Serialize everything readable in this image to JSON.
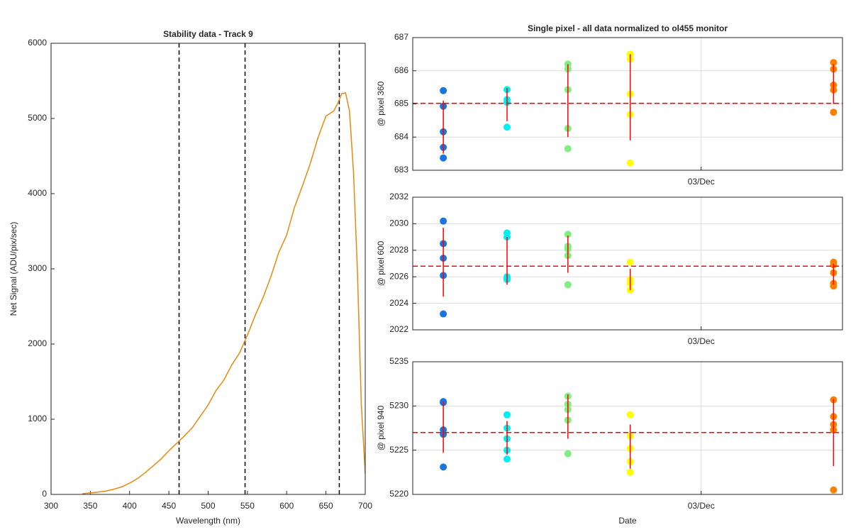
{
  "chart_data": [
    {
      "type": "line",
      "title": "Stability data - Track 9",
      "xlabel": "Wavelength (nm)",
      "ylabel": "Net Signal (ADU/pix/sec)",
      "color": "#e8890c",
      "x": [
        340,
        350,
        360,
        370,
        380,
        390,
        400,
        410,
        420,
        430,
        440,
        450,
        460,
        470,
        480,
        490,
        500,
        510,
        520,
        530,
        540,
        550,
        560,
        570,
        580,
        590,
        600,
        610,
        620,
        630,
        640,
        650,
        660,
        665,
        670,
        675,
        680,
        685,
        690,
        695,
        700
      ],
      "y": [
        10,
        20,
        30,
        45,
        70,
        100,
        150,
        210,
        290,
        380,
        470,
        580,
        680,
        780,
        890,
        1040,
        1190,
        1380,
        1520,
        1720,
        1880,
        2120,
        2380,
        2620,
        2900,
        3220,
        3450,
        3820,
        4100,
        4400,
        4750,
        5030,
        5100,
        5200,
        5330,
        5340,
        5100,
        4300,
        3000,
        1200,
        280
      ],
      "vlines": [
        463,
        547,
        667
      ],
      "vline_color": "#000000",
      "xlim": [
        300,
        700
      ],
      "xticks": [
        300,
        350,
        400,
        450,
        500,
        550,
        600,
        650,
        700
      ],
      "ylim": [
        0,
        6000
      ],
      "yticks": [
        0,
        1000,
        2000,
        3000,
        4000,
        5000,
        6000
      ],
      "grid": false
    },
    {
      "type": "scatter",
      "title": "Single pixel - all data normalized to ol455 monitor",
      "ylabel": "@ pixel 360",
      "xlim": [
        2,
        3.49
      ],
      "xticks": [
        {
          "value": 3,
          "label": "03/Dec"
        }
      ],
      "ylim": [
        683,
        687
      ],
      "yticks": [
        683,
        684,
        685,
        686,
        687
      ],
      "grid": true,
      "mean": 685.02,
      "error_color": "#ff0000",
      "series": [
        {
          "color": "#1a75e0",
          "x": 2.106,
          "values": [
            685.4,
            684.93,
            684.16,
            683.69,
            683.37
          ],
          "center": 684.3,
          "error": 0.8
        },
        {
          "color": "#00f0f0",
          "x": 2.327,
          "values": [
            685.43,
            685.13,
            685.05,
            684.3
          ],
          "center": 684.98,
          "error": 0.5
        },
        {
          "color": "#80ee80",
          "x": 2.538,
          "values": [
            686.2,
            686.05,
            685.43,
            684.26,
            683.65
          ],
          "center": 685.1,
          "error": 1.1
        },
        {
          "color": "#ffff00",
          "x": 2.754,
          "values": [
            686.5,
            686.35,
            685.3,
            684.68,
            683.22
          ],
          "center": 685.2,
          "error": 1.3
        },
        {
          "color": "#ff8000",
          "x": 3.459,
          "values": [
            686.25,
            686.05,
            685.57,
            685.42,
            684.75
          ],
          "center": 685.6,
          "error": 0.6
        }
      ]
    },
    {
      "type": "scatter",
      "ylabel": "@ pixel 600",
      "xlim": [
        2,
        3.49
      ],
      "xticks": [
        {
          "value": 3,
          "label": "03/Dec"
        }
      ],
      "ylim": [
        2022,
        2032
      ],
      "yticks": [
        2022,
        2024,
        2026,
        2028,
        2030,
        2032
      ],
      "grid": true,
      "mean": 2026.8,
      "error_color": "#ff0000",
      "series": [
        {
          "color": "#1a75e0",
          "x": 2.106,
          "values": [
            2030.2,
            2028.5,
            2027.4,
            2026.1,
            2023.2
          ],
          "center": 2027.1,
          "error": 2.6
        },
        {
          "color": "#00f0f0",
          "x": 2.327,
          "values": [
            2029.3,
            2029.0,
            2026.0,
            2025.8,
            2025.9
          ],
          "center": 2027.2,
          "error": 1.8
        },
        {
          "color": "#80ee80",
          "x": 2.538,
          "values": [
            2029.2,
            2028.3,
            2028.1,
            2027.6,
            2025.4
          ],
          "center": 2027.7,
          "error": 1.4
        },
        {
          "color": "#ffff00",
          "x": 2.754,
          "values": [
            2027.1,
            2025.8,
            2025.6,
            2025.5,
            2025.0
          ],
          "center": 2025.8,
          "error": 0.8
        },
        {
          "color": "#ff8000",
          "x": 3.459,
          "values": [
            2027.1,
            2026.9,
            2026.3,
            2025.5,
            2025.3
          ],
          "center": 2026.2,
          "error": 0.8
        }
      ]
    },
    {
      "type": "scatter",
      "ylabel": "@ pixel 940",
      "xlabel": "Date",
      "xlim": [
        2,
        3.49
      ],
      "xticks": [
        {
          "value": 3,
          "label": "03/Dec"
        }
      ],
      "ylim": [
        5220,
        5235
      ],
      "yticks": [
        5220,
        5225,
        5230,
        5235
      ],
      "grid": true,
      "mean": 5227.0,
      "error_color": "#ff0000",
      "series": [
        {
          "color": "#1a75e0",
          "x": 2.106,
          "values": [
            5230.5,
            5230.4,
            5227.3,
            5226.8,
            5223.1
          ],
          "center": 5227.6,
          "error": 2.9
        },
        {
          "color": "#00f0f0",
          "x": 2.327,
          "values": [
            5229.0,
            5227.5,
            5226.3,
            5225.0,
            5224.0
          ],
          "center": 5226.4,
          "error": 1.9
        },
        {
          "color": "#80ee80",
          "x": 2.538,
          "values": [
            5231.1,
            5230.2,
            5229.6,
            5228.4,
            5224.6
          ],
          "center": 5228.8,
          "error": 2.5
        },
        {
          "color": "#ffff00",
          "x": 2.754,
          "values": [
            5229.0,
            5226.6,
            5225.2,
            5223.7,
            5222.5
          ],
          "center": 5225.4,
          "error": 2.5
        },
        {
          "color": "#ff8000",
          "x": 3.459,
          "values": [
            5230.7,
            5228.8,
            5227.9,
            5227.3,
            5220.5
          ],
          "center": 5227.0,
          "error": 3.8
        }
      ]
    }
  ]
}
